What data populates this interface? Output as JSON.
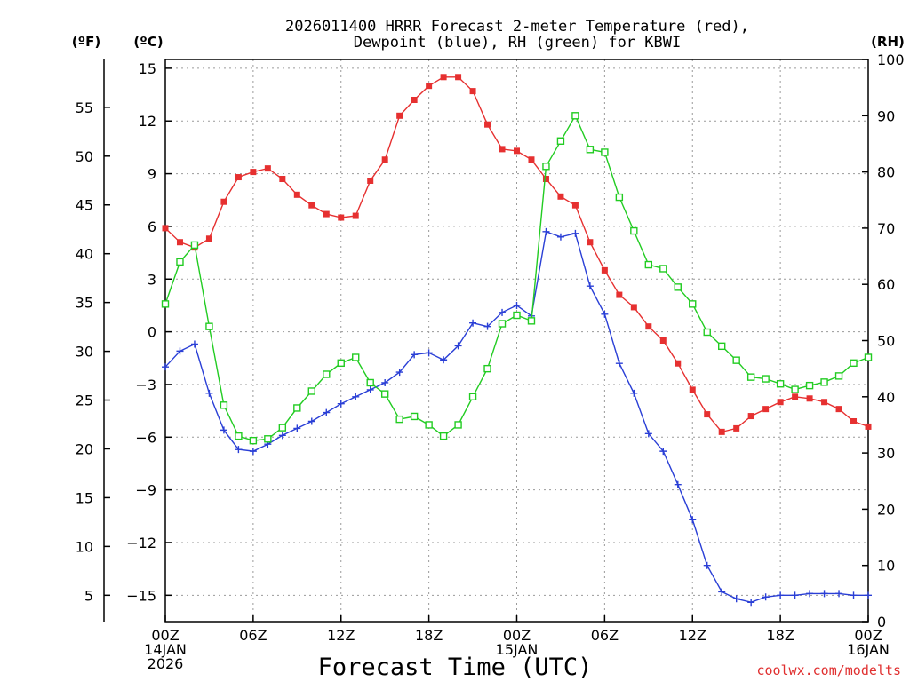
{
  "chart_data": {
    "type": "line",
    "title": [
      "2026011400 HRRR Forecast 2-meter Temperature (red),",
      "Dewpoint (blue), RH (green) for KBWI"
    ],
    "xlabel": "Forecast Time (UTC)",
    "credit": "coolwx.com/modelts",
    "units": {
      "fahrenheit": "(ºF)",
      "celsius": "(ºC)",
      "rh": "(RH)"
    },
    "x_hours": [
      0,
      1,
      2,
      3,
      4,
      5,
      6,
      7,
      8,
      9,
      10,
      11,
      12,
      13,
      14,
      15,
      16,
      17,
      18,
      19,
      20,
      21,
      22,
      23,
      24,
      25,
      26,
      27,
      28,
      29,
      30,
      31,
      32,
      33,
      34,
      35,
      36,
      37,
      38,
      39,
      40,
      41,
      42,
      43,
      44,
      45,
      46,
      47,
      48
    ],
    "xlim": [
      0,
      48
    ],
    "x_ticks": [
      {
        "h": 0,
        "lines": [
          "00Z",
          "14JAN",
          "2026"
        ]
      },
      {
        "h": 6,
        "lines": [
          "06Z"
        ]
      },
      {
        "h": 12,
        "lines": [
          "12Z"
        ]
      },
      {
        "h": 18,
        "lines": [
          "18Z"
        ]
      },
      {
        "h": 24,
        "lines": [
          "00Z",
          "15JAN"
        ]
      },
      {
        "h": 30,
        "lines": [
          "06Z"
        ]
      },
      {
        "h": 36,
        "lines": [
          "12Z"
        ]
      },
      {
        "h": 42,
        "lines": [
          "18Z"
        ]
      },
      {
        "h": 48,
        "lines": [
          "00Z",
          "16JAN"
        ]
      }
    ],
    "y_celsius": {
      "range": [
        -16.5,
        15.5
      ],
      "ticks": [
        15,
        12,
        9,
        6,
        3,
        0,
        -3,
        -6,
        -9,
        -12,
        -15
      ]
    },
    "y_fahrenheit": {
      "ticks": [
        55,
        50,
        45,
        40,
        35,
        30,
        25,
        20,
        15,
        10,
        5
      ]
    },
    "y_rh": {
      "range": [
        0,
        100
      ],
      "ticks": [
        100,
        90,
        80,
        70,
        60,
        50,
        40,
        30,
        20,
        10,
        0
      ]
    },
    "grid": true,
    "series": [
      {
        "name": "Temperature",
        "color": "#e63030",
        "marker": "filled-square",
        "axis": "celsius",
        "values": [
          5.9,
          5.1,
          4.8,
          5.3,
          7.4,
          8.8,
          9.1,
          9.3,
          8.7,
          7.8,
          7.2,
          6.7,
          6.5,
          6.6,
          8.6,
          9.8,
          12.3,
          13.2,
          14.0,
          14.5,
          14.5,
          13.7,
          11.8,
          10.4,
          10.3,
          9.8,
          8.7,
          7.7,
          7.2,
          5.1,
          3.5,
          2.1,
          1.4,
          0.3,
          -0.5,
          -1.8,
          -3.3,
          -4.7,
          -5.7,
          -5.5,
          -4.8,
          -4.4,
          -4.0,
          -3.7,
          -3.8,
          -4.0,
          -4.4,
          -5.1,
          -5.4
        ]
      },
      {
        "name": "Dewpoint",
        "color": "#2a3fd6",
        "marker": "plus",
        "axis": "celsius",
        "values": [
          -2.0,
          -1.1,
          -0.7,
          -3.5,
          -5.6,
          -6.7,
          -6.8,
          -6.4,
          -5.9,
          -5.5,
          -5.1,
          -4.6,
          -4.1,
          -3.7,
          -3.3,
          -2.9,
          -2.3,
          -1.3,
          -1.2,
          -1.6,
          -0.8,
          0.5,
          0.3,
          1.1,
          1.5,
          0.9,
          5.7,
          5.4,
          5.6,
          2.6,
          1.0,
          -1.8,
          -3.5,
          -5.8,
          -6.8,
          -8.7,
          -10.7,
          -13.3,
          -14.8,
          -15.2,
          -15.4,
          -15.1,
          -15.0,
          -15.0,
          -14.9,
          -14.9,
          -14.9,
          -15.0,
          -15.0
        ]
      },
      {
        "name": "RH",
        "color": "#22cc22",
        "marker": "open-square",
        "axis": "rh",
        "values": [
          56.5,
          64.0,
          67.0,
          52.5,
          38.5,
          33.0,
          32.2,
          32.5,
          34.5,
          38.0,
          41.0,
          44.0,
          46.0,
          47.0,
          42.5,
          40.5,
          36.0,
          36.5,
          35.0,
          33.0,
          35.0,
          40.0,
          45.0,
          53.0,
          54.5,
          53.5,
          81.0,
          85.5,
          90.0,
          84.0,
          83.5,
          75.5,
          69.5,
          63.5,
          62.8,
          59.5,
          56.5,
          51.5,
          49.0,
          46.5,
          43.5,
          43.2,
          42.3,
          41.3,
          42.0,
          42.6,
          43.7,
          46.0,
          47.0
        ]
      }
    ]
  }
}
